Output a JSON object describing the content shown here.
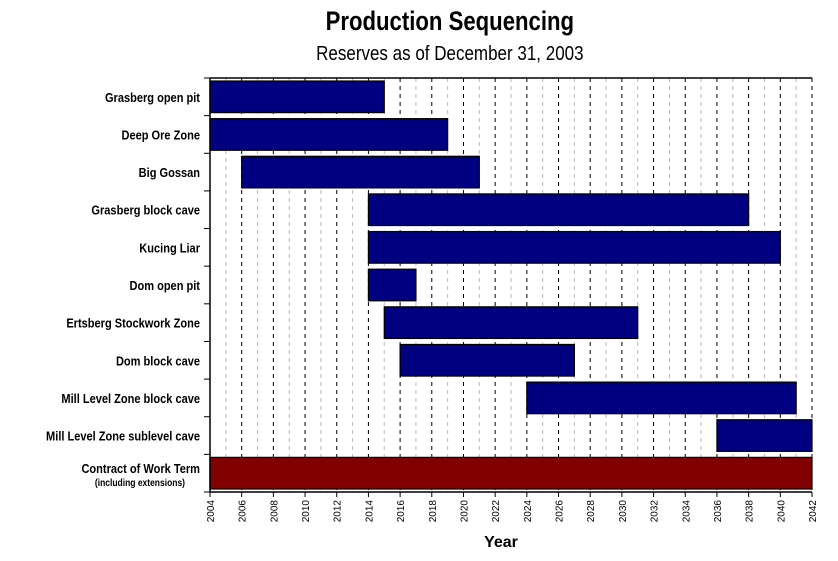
{
  "chart_data": {
    "type": "gantt",
    "title": "Production Sequencing",
    "subtitle": "Reserves as of December 31, 2003",
    "xlabel": "Year",
    "xlim": [
      2004,
      2042
    ],
    "xticks": [
      2004,
      2006,
      2008,
      2010,
      2012,
      2014,
      2016,
      2018,
      2020,
      2022,
      2024,
      2026,
      2028,
      2030,
      2032,
      2034,
      2036,
      2038,
      2040,
      2042
    ],
    "grid": "vertical dashed every year",
    "tasks": [
      {
        "name": "Grasberg open pit",
        "start": 2004,
        "end": 2015,
        "color": "#000080"
      },
      {
        "name": "Deep Ore Zone",
        "start": 2004,
        "end": 2019,
        "color": "#000080"
      },
      {
        "name": "Big Gossan",
        "start": 2006,
        "end": 2021,
        "color": "#000080"
      },
      {
        "name": "Grasberg block cave",
        "start": 2014,
        "end": 2038,
        "color": "#000080"
      },
      {
        "name": "Kucing Liar",
        "start": 2014,
        "end": 2040,
        "color": "#000080"
      },
      {
        "name": "Dom open pit",
        "start": 2014,
        "end": 2017,
        "color": "#000080"
      },
      {
        "name": "Ertsberg Stockwork Zone",
        "start": 2015,
        "end": 2031,
        "color": "#000080"
      },
      {
        "name": "Dom block cave",
        "start": 2016,
        "end": 2027,
        "color": "#000080"
      },
      {
        "name": "Mill Level Zone block cave",
        "start": 2024,
        "end": 2041,
        "color": "#000080"
      },
      {
        "name": "Mill Level Zone sublevel cave",
        "start": 2036,
        "end": 2042,
        "color": "#000080"
      },
      {
        "name": "Contract of Work Term",
        "sublabel": "(including extensions)",
        "start": 2004,
        "end": 2042,
        "color": "#800000"
      }
    ]
  }
}
